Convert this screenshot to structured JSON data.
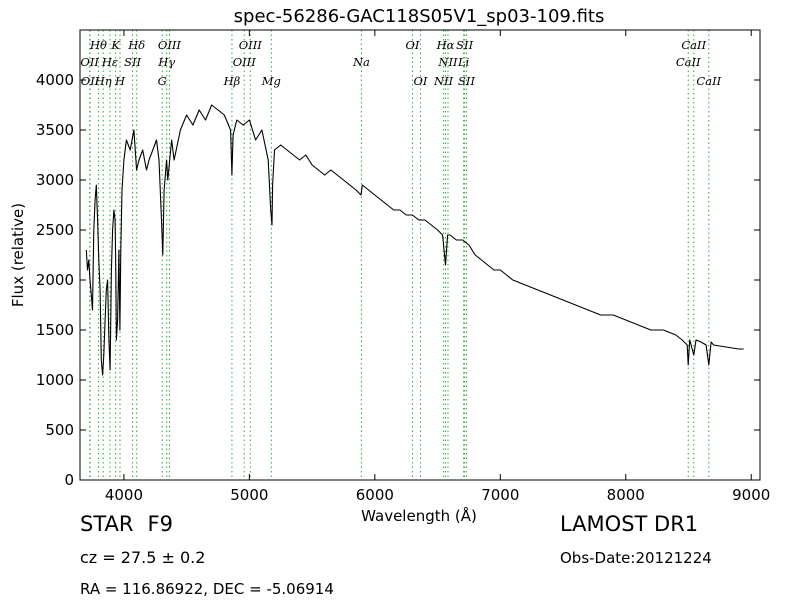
{
  "chart_data": {
    "type": "line",
    "title": "spec-56286-GAC118S05V1_sp03-109.fits",
    "xlabel": "Wavelength (Å)",
    "ylabel": "Flux (relative)",
    "xlim": [
      3650,
      9070
    ],
    "ylim": [
      0,
      4500
    ],
    "xticks": [
      4000,
      5000,
      6000,
      7000,
      8000,
      9000
    ],
    "yticks": [
      0,
      500,
      1000,
      1500,
      2000,
      2500,
      3000,
      3500,
      4000
    ],
    "grid": false,
    "line_color": "#000000",
    "marker_color": "#33aa33",
    "series": [
      {
        "x": [
          3700,
          3710,
          3720,
          3730,
          3740,
          3750,
          3760,
          3770,
          3780,
          3790,
          3800,
          3810,
          3820,
          3830,
          3840,
          3850,
          3860,
          3870,
          3880,
          3890,
          3900,
          3910,
          3920,
          3930,
          3935,
          3940,
          3950,
          3960,
          3968,
          3975,
          3985,
          4000,
          4020,
          4050,
          4080,
          4101,
          4120,
          4150,
          4180,
          4200,
          4230,
          4260,
          4280,
          4300,
          4310,
          4320,
          4340,
          4350,
          4380,
          4400,
          4450,
          4500,
          4550,
          4600,
          4650,
          4700,
          4750,
          4800,
          4850,
          4861,
          4870,
          4900,
          4950,
          5000,
          5050,
          5100,
          5150,
          5170,
          5180,
          5185,
          5200,
          5250,
          5300,
          5350,
          5400,
          5450,
          5500,
          5550,
          5600,
          5650,
          5700,
          5750,
          5800,
          5850,
          5890,
          5900,
          5950,
          6000,
          6050,
          6100,
          6150,
          6200,
          6250,
          6300,
          6350,
          6400,
          6450,
          6500,
          6540,
          6563,
          6580,
          6600,
          6650,
          6700,
          6750,
          6800,
          6850,
          6900,
          6950,
          7000,
          7050,
          7100,
          7200,
          7300,
          7400,
          7500,
          7600,
          7700,
          7800,
          7900,
          8000,
          8100,
          8200,
          8300,
          8400,
          8450,
          8490,
          8498,
          8510,
          8542,
          8560,
          8600,
          8640,
          8662,
          8680,
          8700,
          8750,
          8800,
          8850,
          8900,
          8940
        ],
        "y": [
          2300,
          2100,
          2200,
          2000,
          1850,
          1700,
          2500,
          2800,
          2950,
          2600,
          2200,
          1900,
          1200,
          1050,
          1250,
          1600,
          1900,
          2000,
          1400,
          1100,
          2100,
          2500,
          2700,
          2600,
          2100,
          1400,
          1600,
          2300,
          1500,
          2300,
          2900,
          3200,
          3400,
          3300,
          3500,
          3100,
          3200,
          3300,
          3100,
          3200,
          3300,
          3400,
          3200,
          2600,
          2250,
          2900,
          3200,
          3000,
          3400,
          3200,
          3500,
          3650,
          3550,
          3700,
          3600,
          3750,
          3700,
          3650,
          3500,
          3050,
          3450,
          3600,
          3550,
          3600,
          3400,
          3500,
          3200,
          2700,
          2550,
          2950,
          3300,
          3350,
          3300,
          3250,
          3200,
          3250,
          3150,
          3100,
          3050,
          3100,
          3050,
          3000,
          2950,
          2900,
          2850,
          2950,
          2900,
          2850,
          2800,
          2750,
          2700,
          2700,
          2650,
          2650,
          2600,
          2600,
          2550,
          2500,
          2450,
          2150,
          2450,
          2450,
          2400,
          2400,
          2350,
          2250,
          2200,
          2150,
          2100,
          2100,
          2050,
          2000,
          1950,
          1900,
          1850,
          1800,
          1750,
          1700,
          1650,
          1650,
          1600,
          1550,
          1500,
          1500,
          1450,
          1400,
          1350,
          1150,
          1400,
          1250,
          1400,
          1380,
          1350,
          1150,
          1380,
          1350,
          1340,
          1330,
          1320,
          1310,
          1310
        ]
      }
    ],
    "spectral_lines": [
      {
        "name": "OII",
        "wavelength": 3727,
        "row": 2
      },
      {
        "name": "OII",
        "wavelength": 3730,
        "row": 3
      },
      {
        "name": "Hθ",
        "wavelength": 3797,
        "row": 1
      },
      {
        "name": "Hη",
        "wavelength": 3835,
        "row": 3
      },
      {
        "name": "Hε",
        "wavelength": 3889,
        "row": 2
      },
      {
        "name": "K",
        "wavelength": 3934,
        "row": 1
      },
      {
        "name": "SII",
        "wavelength": 4069,
        "row": 2
      },
      {
        "name": "H",
        "wavelength": 3969,
        "row": 3
      },
      {
        "name": "Hδ",
        "wavelength": 4102,
        "row": 1
      },
      {
        "name": "OIII",
        "wavelength": 4363,
        "row": 1
      },
      {
        "name": "Hγ",
        "wavelength": 4341,
        "row": 2
      },
      {
        "name": "G",
        "wavelength": 4305,
        "row": 3
      },
      {
        "name": "OIII",
        "wavelength": 5007,
        "row": 1
      },
      {
        "name": "OIII",
        "wavelength": 4959,
        "row": 2
      },
      {
        "name": "Hβ",
        "wavelength": 4861,
        "row": 3
      },
      {
        "name": "Mg",
        "wavelength": 5175,
        "row": 3
      },
      {
        "name": "Na",
        "wavelength": 5893,
        "row": 2
      },
      {
        "name": "OI",
        "wavelength": 6300,
        "row": 1
      },
      {
        "name": "OI",
        "wavelength": 6364,
        "row": 3
      },
      {
        "name": "Hα",
        "wavelength": 6563,
        "row": 1
      },
      {
        "name": "SII",
        "wavelength": 6716,
        "row": 1
      },
      {
        "name": "NII",
        "wavelength": 6583,
        "row": 2
      },
      {
        "name": "NII",
        "wavelength": 6548,
        "row": 3
      },
      {
        "name": "Li",
        "wavelength": 6708,
        "row": 2
      },
      {
        "name": "SII",
        "wavelength": 6731,
        "row": 3
      },
      {
        "name": "CaII",
        "wavelength": 8542,
        "row": 1
      },
      {
        "name": "CaII",
        "wavelength": 8498,
        "row": 2
      },
      {
        "name": "CaII",
        "wavelength": 8662,
        "row": 3
      }
    ]
  },
  "info": {
    "object_class": "STAR",
    "subclass": "F9",
    "survey": "LAMOST DR1",
    "redshift": "cz = 27.5 ± 0.2",
    "obs_date": "Obs-Date:20121224",
    "coords": "RA = 116.86922, DEC = -5.06914"
  }
}
